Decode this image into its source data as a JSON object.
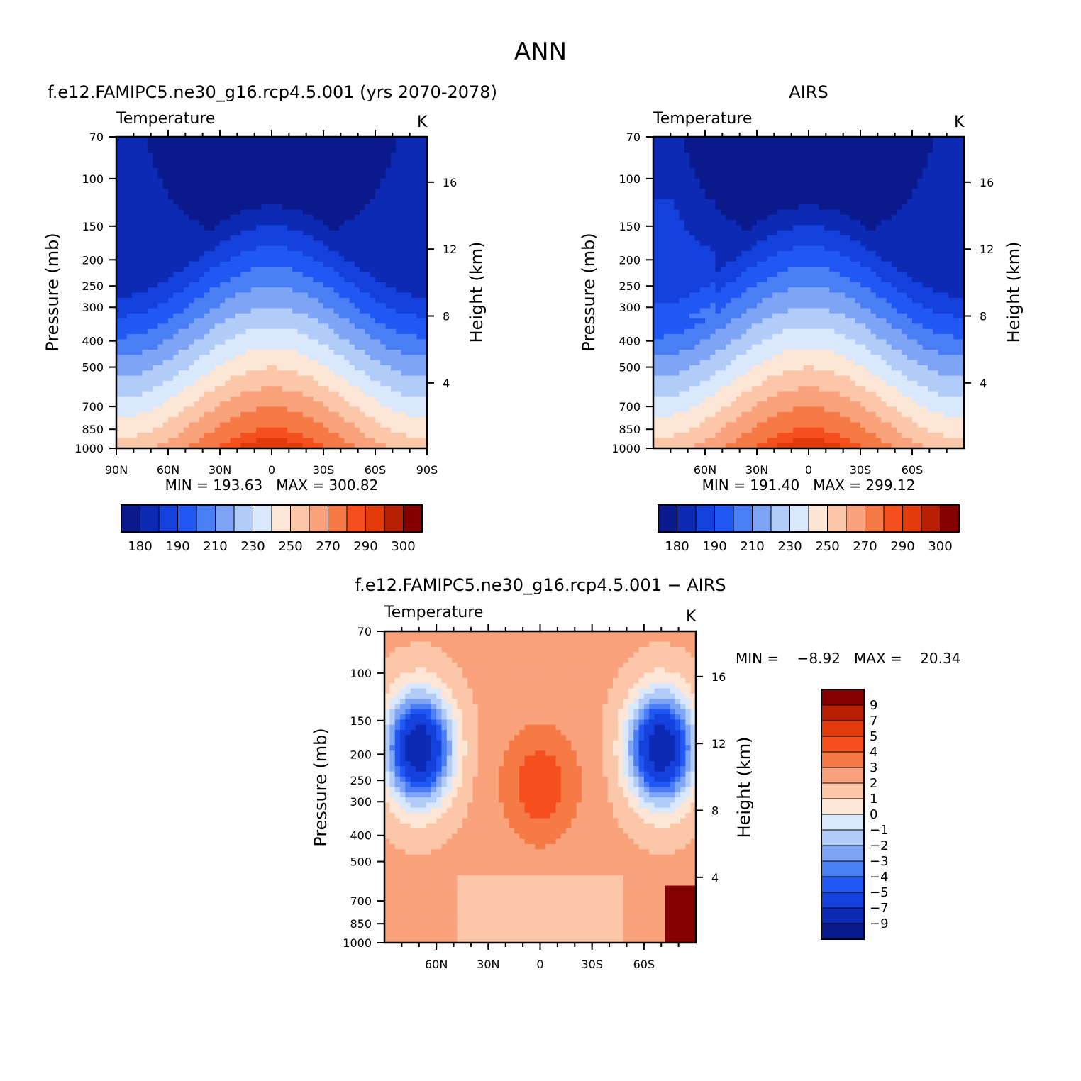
{
  "figure_title": "ANN",
  "colors": {
    "abs_palette": [
      "#0a1a8c",
      "#0c2ab4",
      "#1440dc",
      "#2158f4",
      "#4a7ef4",
      "#7ea4f6",
      "#b2ccfa",
      "#d9e8fc",
      "#fde6d6",
      "#fcc6a9",
      "#f9a27b",
      "#f67a46",
      "#f44f1c",
      "#e23a08",
      "#b82004",
      "#840000"
    ],
    "diff_palette": [
      "#0a1a8c",
      "#0c2ab4",
      "#1440dc",
      "#2158f4",
      "#4a7ef4",
      "#7ea4f6",
      "#b2ccfa",
      "#d9e8fc",
      "#fde6d6",
      "#fcc6a9",
      "#f9a27b",
      "#f67a46",
      "#f44f1c",
      "#e23a08",
      "#b82004",
      "#840000"
    ]
  },
  "chart_data": [
    {
      "type": "heatmap",
      "title": "f.e12.FAMIPC5.ne30_g16.rcp4.5.001 (yrs 2070-2078)",
      "variable": "Temperature",
      "units": "K",
      "ylabel": "Pressure (mb)",
      "ylabel_right": "Height (km)",
      "pressure_ticks": [
        "70",
        "100",
        "150",
        "200",
        "250",
        "300",
        "400",
        "500",
        "700",
        "850",
        "1000"
      ],
      "height_ticks": [
        "16",
        "12",
        "8",
        "4"
      ],
      "lat_ticks": [
        "90N",
        "60N",
        "30N",
        "0",
        "30S",
        "60S",
        "90S"
      ],
      "stats": "MIN = 193.63   MAX = 300.82",
      "colorbar_ticks": [
        "180",
        "190",
        "210",
        "230",
        "250",
        "270",
        "290",
        "300"
      ]
    },
    {
      "type": "heatmap",
      "title": "AIRS",
      "variable": "Temperature",
      "units": "K",
      "ylabel": "Pressure (mb)",
      "ylabel_right": "Height (km)",
      "pressure_ticks": [
        "70",
        "100",
        "150",
        "200",
        "250",
        "300",
        "400",
        "500",
        "700",
        "850",
        "1000"
      ],
      "height_ticks": [
        "16",
        "12",
        "8",
        "4"
      ],
      "lat_ticks": [
        "60N",
        "30N",
        "0",
        "30S",
        "60S"
      ],
      "stats": "MIN = 191.40   MAX = 299.12",
      "colorbar_ticks": [
        "180",
        "190",
        "210",
        "230",
        "250",
        "270",
        "290",
        "300"
      ]
    },
    {
      "type": "heatmap",
      "title": "f.e12.FAMIPC5.ne30_g16.rcp4.5.001 − AIRS",
      "variable": "Temperature",
      "units": "K",
      "ylabel": "Pressure (mb)",
      "ylabel_right": "Height (km)",
      "pressure_ticks": [
        "70",
        "100",
        "150",
        "200",
        "250",
        "300",
        "400",
        "500",
        "700",
        "850",
        "1000"
      ],
      "height_ticks": [
        "16",
        "12",
        "8",
        "4"
      ],
      "lat_ticks": [
        "60N",
        "30N",
        "0",
        "30S",
        "60S"
      ],
      "stats": "MIN =    −8.92   MAX =    20.34",
      "colorbar_ticks": [
        "9",
        "7",
        "5",
        "4",
        "3",
        "2",
        "1",
        "0",
        "−1",
        "−2",
        "−3",
        "−4",
        "−5",
        "−7",
        "−9"
      ]
    }
  ]
}
